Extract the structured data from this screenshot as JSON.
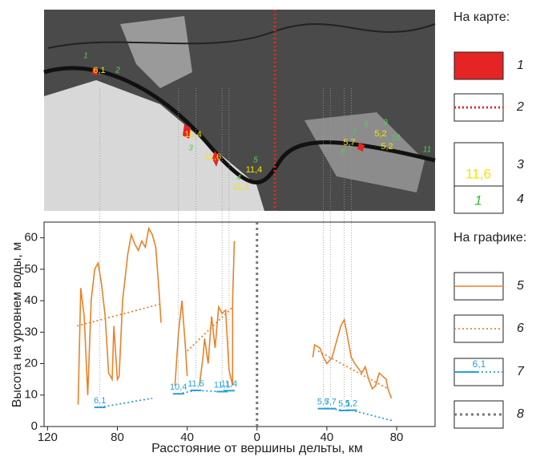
{
  "chart_data": {
    "type": "line",
    "xlabel": "Расстояние от вершины дельты, км",
    "ylabel": "Высота на уровнем воды, м",
    "xlim": [
      -122,
      102
    ],
    "xticks": [
      {
        "value": -120,
        "label": "120"
      },
      {
        "value": -80,
        "label": "80"
      },
      {
        "value": -40,
        "label": "40"
      },
      0,
      40,
      80
    ],
    "ylim": [
      0,
      65
    ],
    "yticks": [
      0,
      10,
      20,
      30,
      40,
      50,
      60
    ],
    "vlines": [
      0
    ],
    "series": [
      {
        "color": "#e8822a",
        "style": "solid",
        "x": [
          -102.5,
          -101,
          -99,
          -97,
          -95,
          -93,
          -91,
          -89,
          -87,
          -85,
          -83,
          -82,
          -80,
          -79,
          -77,
          -74,
          -72,
          -70,
          -68,
          -66,
          -64,
          -62,
          -60,
          -58,
          -56,
          -55,
          null,
          -47,
          -45,
          -43,
          -41,
          -40,
          null,
          -33,
          -31,
          -30,
          -28,
          -26,
          -24,
          -22,
          -20,
          -18,
          -16,
          -14,
          -14,
          -13,
          null,
          32,
          33,
          36,
          38,
          40,
          43,
          46,
          48,
          50,
          52,
          54,
          56,
          60,
          62,
          64,
          66,
          68,
          70,
          72,
          74,
          75,
          77
        ],
        "values": [
          7,
          44,
          35,
          10,
          40,
          50,
          52,
          45,
          35,
          17,
          15,
          32,
          15,
          16,
          40,
          55,
          61,
          58,
          56,
          59,
          57,
          63,
          61,
          57,
          42,
          33,
          null,
          13,
          30,
          40,
          25,
          16,
          null,
          13,
          22,
          28,
          20,
          35,
          25,
          38,
          36,
          37,
          18,
          13,
          40,
          59,
          null,
          22,
          26,
          25,
          22,
          20,
          22,
          28,
          32,
          34,
          28,
          22,
          20,
          17,
          19,
          15,
          12,
          13,
          17,
          16,
          15,
          12,
          9
        ]
      },
      {
        "color": "#e8822a",
        "style": "dotted",
        "x": [
          -103,
          -55,
          null,
          -40,
          -14,
          null,
          35,
          75
        ],
        "values": [
          32,
          39,
          null,
          24,
          38,
          null,
          24,
          12
        ]
      },
      {
        "color": "#2a9fd6",
        "style": "dotted",
        "x": [
          -90,
          -60,
          null,
          -45,
          -35,
          -20,
          -16,
          null,
          38,
          42,
          50,
          54,
          78
        ],
        "values": [
          6.1,
          9,
          null,
          10.4,
          11.5,
          11.1,
          11.4,
          null,
          5.7,
          5.7,
          5.1,
          5.2,
          1.8
        ],
        "value_labels": [
          "6,1",
          null,
          null,
          "10,4",
          "11,5",
          "11,1",
          "11,4",
          null,
          "5,7",
          "5,7",
          "5,1",
          "5,2",
          null
        ]
      }
    ]
  },
  "map": {
    "yellow_labels": [
      "6,1",
      "10,4",
      "11,6",
      "11,4",
      "11,1",
      "5,7",
      "5,2",
      "5,2"
    ],
    "green_labels": [
      "1",
      "2",
      "3",
      "4",
      "5",
      "6",
      "7",
      "8",
      "9",
      "10",
      "11"
    ]
  },
  "legend": {
    "map_heading": "На карте:",
    "chart_heading": "На графике:",
    "items": [
      "1",
      "2",
      "3",
      "4",
      "5",
      "6",
      "7",
      "8"
    ],
    "sample_3": "11,6",
    "sample_4": "1",
    "sample_7": "6,1"
  }
}
